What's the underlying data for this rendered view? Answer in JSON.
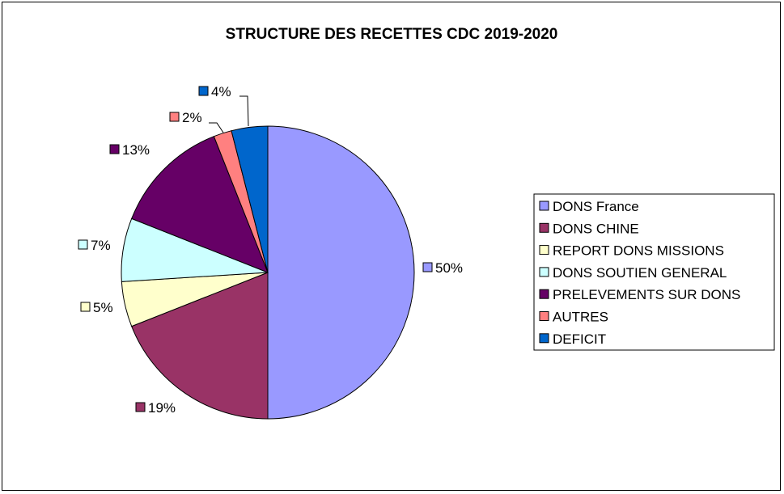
{
  "chart_data": {
    "type": "pie",
    "title": "STRUCTURE DES RECETTES CDC 2019-2020",
    "legend_position": "right",
    "slices": [
      {
        "label": "DONS France",
        "value": 50,
        "value_label": "50%",
        "color": "#9999FF"
      },
      {
        "label": "DONS CHINE",
        "value": 19,
        "value_label": "19%",
        "color": "#993366"
      },
      {
        "label": "REPORT DONS MISSIONS",
        "value": 5,
        "value_label": "5%",
        "color": "#FFFFCC"
      },
      {
        "label": "DONS SOUTIEN GENERAL",
        "value": 7,
        "value_label": "7%",
        "color": "#CCFFFF"
      },
      {
        "label": "PRELEVEMENTS SUR DONS",
        "value": 13,
        "value_label": "13%",
        "color": "#660066"
      },
      {
        "label": "AUTRES",
        "value": 2,
        "value_label": "2%",
        "color": "#FF8080"
      },
      {
        "label": "DEFICIT",
        "value": 4,
        "value_label": "4%",
        "color": "#0066CC"
      }
    ]
  }
}
